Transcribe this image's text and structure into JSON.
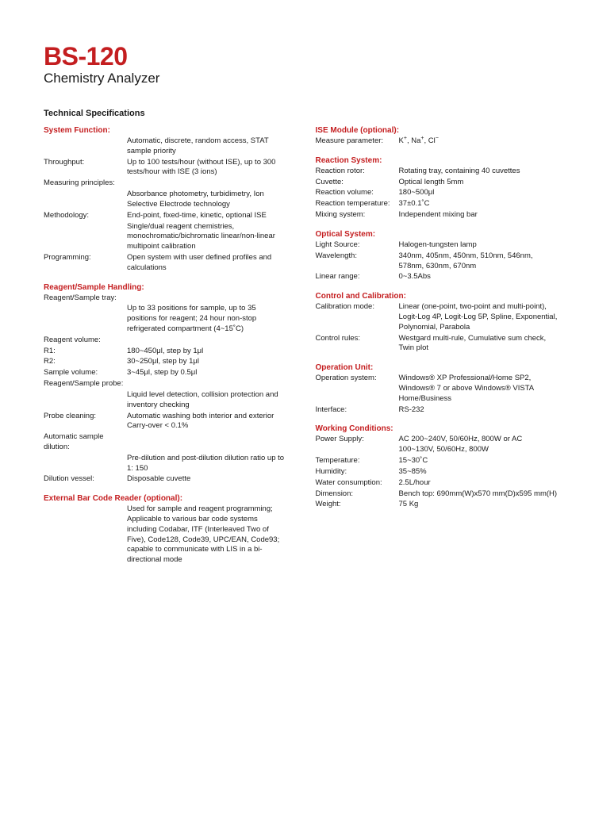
{
  "title": "BS-120",
  "subtitle": "Chemistry Analyzer",
  "section_title": "Technical Specifications",
  "colors": {
    "brand_red": "#c41e20",
    "text": "#1a1a1a",
    "background": "#ffffff"
  },
  "left": {
    "system_function": {
      "header": "System Function:",
      "rows": [
        {
          "label": "",
          "value": "Automatic, discrete, random access, STAT sample priority"
        },
        {
          "label": "Throughput:",
          "value": "Up to 100 tests/hour (without ISE), up to 300 tests/hour with ISE (3 ions)"
        },
        {
          "label": "Measuring principles:",
          "value": ""
        },
        {
          "label": "",
          "value": "Absorbance photometry, turbidimetry, Ion Selective Electrode technology"
        },
        {
          "label": "Methodology:",
          "value": "End-point, fixed-time, kinetic, optional ISE"
        },
        {
          "label": "",
          "value": "Single/dual reagent chemistries, monochromatic/bichromatic linear/non-linear multipoint calibration"
        },
        {
          "label": "Programming:",
          "value": "Open system with user defined profiles and calculations"
        }
      ]
    },
    "reagent_sample": {
      "header": "Reagent/Sample Handling:",
      "rows": [
        {
          "label": "Reagent/Sample tray:",
          "value": ""
        },
        {
          "label": "",
          "value": "Up to 33 positions for sample, up to 35 positions for reagent; 24 hour non-stop refrigerated compartment (4~15˚C)"
        },
        {
          "label": "Reagent volume:",
          "value": ""
        },
        {
          "label": "R1:",
          "value": "180~450μl, step by 1μl"
        },
        {
          "label": "R2:",
          "value": "30~250μl, step by 1μl"
        },
        {
          "label": "Sample volume:",
          "value": "3~45μl, step by 0.5μl"
        },
        {
          "label": "Reagent/Sample probe:",
          "value": ""
        },
        {
          "label": "",
          "value": "Liquid level detection, collision protection and inventory checking"
        },
        {
          "label": "Probe cleaning:",
          "value": "Automatic washing both interior and exterior Carry-over < 0.1%"
        },
        {
          "label": "Automatic sample dilution:",
          "value": ""
        },
        {
          "label": "",
          "value": "Pre-dilution and post-dilution dilution ratio up to 1: 150"
        },
        {
          "label": "Dilution vessel:",
          "value": "Disposable cuvette"
        }
      ]
    },
    "barcode": {
      "header": "External Bar Code Reader (optional):",
      "rows": [
        {
          "label": "",
          "value": "Used for sample and reagent programming; Applicable to various bar code systems including  Codabar, ITF (Interleaved Two of Five), Code128, Code39, UPC/EAN, Code93; capable to communicate with LIS in a bi-directional mode"
        }
      ]
    }
  },
  "right": {
    "ise": {
      "header": "ISE Module (optional):",
      "rows": [
        {
          "label": "Measure parameter:",
          "value_html": "K<sup>+</sup>, Na<sup>+</sup>, Cl<sup>−</sup>"
        }
      ]
    },
    "reaction": {
      "header": "Reaction System:",
      "rows": [
        {
          "label": "Reaction rotor:",
          "value": "Rotating tray, containing 40 cuvettes"
        },
        {
          "label": "Cuvette:",
          "value": "Optical length 5mm"
        },
        {
          "label": "Reaction volume:",
          "value": "180~500μl"
        },
        {
          "label": "Reaction temperature:",
          "value": "37±0.1˚C"
        },
        {
          "label": "Mixing system:",
          "value": "Independent mixing bar"
        }
      ]
    },
    "optical": {
      "header": "Optical System:",
      "rows": [
        {
          "label": "Light Source:",
          "value": "Halogen-tungsten lamp"
        },
        {
          "label": "Wavelength:",
          "value": "340nm, 405nm, 450nm, 510nm, 546nm, 578nm, 630nm, 670nm"
        },
        {
          "label": "Linear range:",
          "value": "0~3.5Abs"
        }
      ]
    },
    "control": {
      "header": "Control and Calibration:",
      "rows": [
        {
          "label": "Calibration mode:",
          "value": "Linear (one-point, two-point and multi-point), Logit-Log 4P, Logit-Log 5P, Spline, Exponential, Polynomial, Parabola"
        },
        {
          "label": "Control rules:",
          "value": "Westgard multi-rule, Cumulative sum check, Twin plot"
        }
      ]
    },
    "operation": {
      "header": "Operation Unit:",
      "rows": [
        {
          "label": "Operation system:",
          "value": "Windows® XP Professional/Home SP2, Windows® 7 or above Windows® VISTA Home/Business"
        },
        {
          "label": "Interface:",
          "value": "RS-232"
        }
      ]
    },
    "working": {
      "header": "Working Conditions:",
      "rows": [
        {
          "label": "Power Supply:",
          "value": "AC 200~240V, 50/60Hz, 800W or AC 100~130V, 50/60Hz, 800W"
        },
        {
          "label": "Temperature:",
          "value": "15~30˚C"
        },
        {
          "label": "Humidity:",
          "value": "35~85%"
        },
        {
          "label": "Water consumption:",
          "value": "2.5L/hour"
        },
        {
          "label": "Dimension:",
          "value": "Bench top: 690mm(W)x570 mm(D)x595 mm(H)"
        },
        {
          "label": "Weight:",
          "value": "75 Kg"
        }
      ]
    }
  }
}
